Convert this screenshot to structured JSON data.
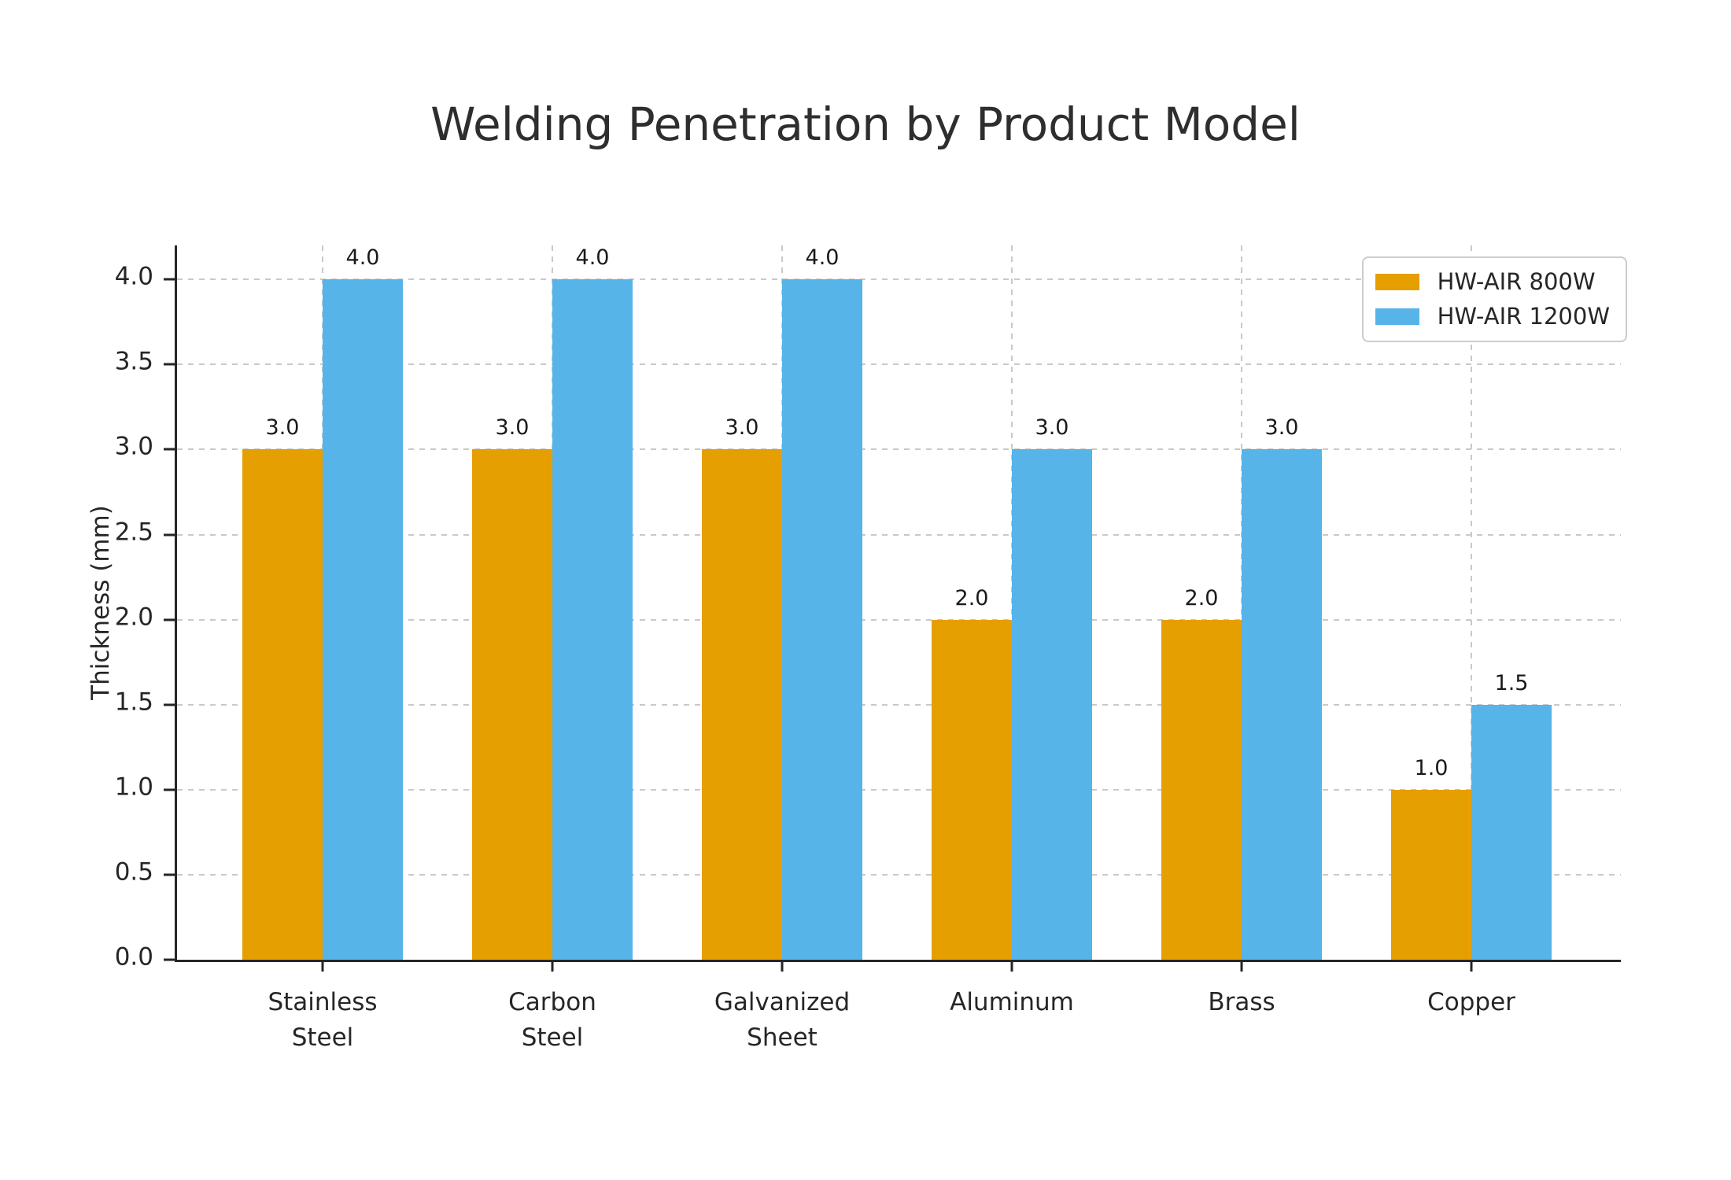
{
  "chart_data": {
    "type": "bar",
    "title": "Welding Penetration by Product Model",
    "xlabel": "",
    "ylabel": "Thickness (mm)",
    "categories": [
      "Stainless\nSteel",
      "Carbon\nSteel",
      "Galvanized\nSheet",
      "Aluminum",
      "Brass",
      "Copper"
    ],
    "series": [
      {
        "name": "HW-AIR 800W",
        "color": "#E69F00",
        "values": [
          3.0,
          3.0,
          3.0,
          2.0,
          2.0,
          1.0
        ]
      },
      {
        "name": "HW-AIR 1200W",
        "color": "#56B4E9",
        "values": [
          4.0,
          4.0,
          4.0,
          3.0,
          3.0,
          1.5
        ]
      }
    ],
    "ylim": [
      0,
      4.2
    ],
    "yticks": [
      0.0,
      0.5,
      1.0,
      1.5,
      2.0,
      2.5,
      3.0,
      3.5,
      4.0
    ],
    "grid": true,
    "grid_style": "dashed",
    "legend_position": "upper right",
    "value_labels": true,
    "colors": {
      "grid": "#c9c9c9",
      "axis": "#262626",
      "text": "#262626",
      "background": "#ffffff"
    }
  }
}
